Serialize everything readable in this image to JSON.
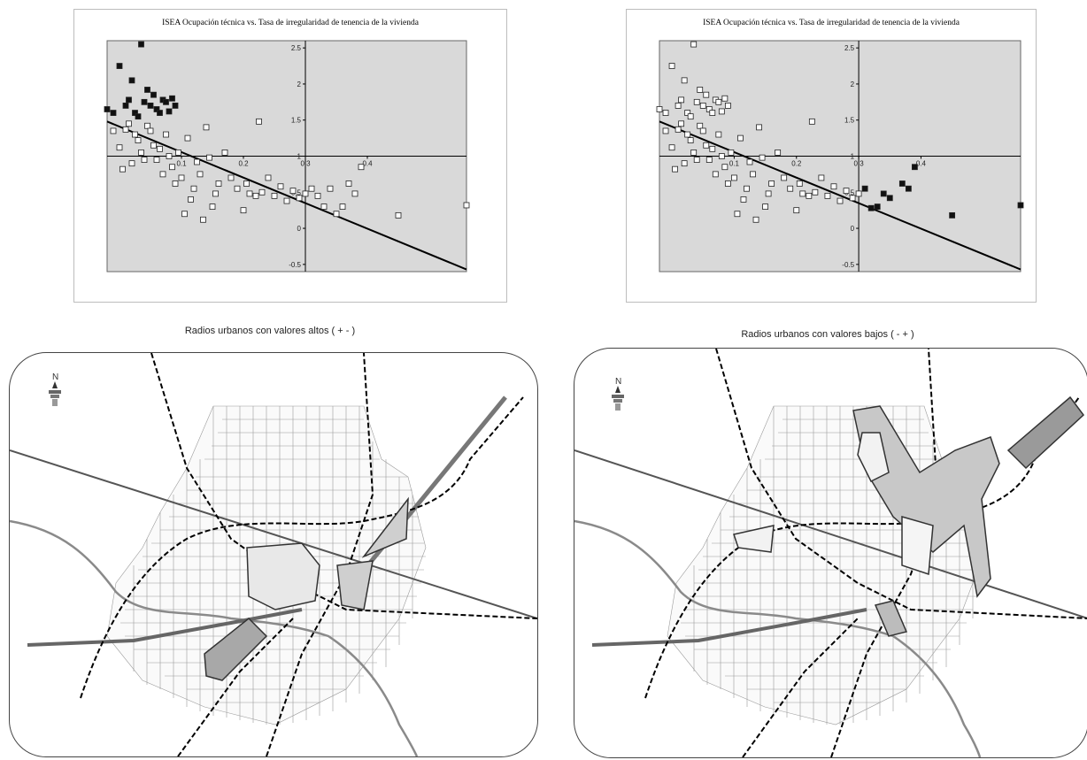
{
  "chart_data": [
    {
      "type": "scatter",
      "title": "ISEA Ocupación técnica vs. Tasa de irregularidad de tenencia de la vivienda",
      "xticks": [
        "0.1",
        "0.2",
        "0.3",
        "0.4"
      ],
      "yticks": [
        "2.5",
        "2",
        "1.5",
        "1",
        "0.5",
        "0",
        "-0.5"
      ],
      "xlim": [
        -0.12,
        0.46
      ],
      "ylim": [
        -0.6,
        2.6
      ],
      "x_axis_at_y": 1,
      "y_axis_at_x": 0.2,
      "regression_line": {
        "x": [
          -0.12,
          0.46
        ],
        "y": [
          1.48,
          -0.57
        ]
      },
      "series": [
        {
          "name": "",
          "filled": true,
          "points": [
            [
              -0.12,
              1.65
            ],
            [
              -0.11,
              1.6
            ],
            [
              -0.1,
              2.25
            ],
            [
              -0.09,
              1.7
            ],
            [
              -0.085,
              1.78
            ],
            [
              -0.08,
              2.05
            ],
            [
              -0.075,
              1.6
            ],
            [
              -0.07,
              1.55
            ],
            [
              -0.065,
              2.55
            ],
            [
              -0.06,
              1.75
            ],
            [
              -0.055,
              1.92
            ],
            [
              -0.05,
              1.7
            ],
            [
              -0.045,
              1.85
            ],
            [
              -0.04,
              1.65
            ],
            [
              -0.035,
              1.6
            ],
            [
              -0.03,
              1.78
            ],
            [
              -0.025,
              1.75
            ],
            [
              -0.02,
              1.62
            ],
            [
              -0.015,
              1.8
            ],
            [
              -0.01,
              1.7
            ]
          ]
        },
        {
          "name": "",
          "filled": false,
          "points": [
            [
              -0.11,
              1.35
            ],
            [
              -0.1,
              1.12
            ],
            [
              -0.095,
              0.82
            ],
            [
              -0.09,
              1.37
            ],
            [
              -0.085,
              1.45
            ],
            [
              -0.08,
              0.9
            ],
            [
              -0.075,
              1.3
            ],
            [
              -0.07,
              1.22
            ],
            [
              -0.065,
              1.05
            ],
            [
              -0.06,
              0.95
            ],
            [
              -0.055,
              1.42
            ],
            [
              -0.05,
              1.35
            ],
            [
              -0.045,
              1.15
            ],
            [
              -0.04,
              0.95
            ],
            [
              -0.035,
              1.1
            ],
            [
              -0.03,
              0.75
            ],
            [
              -0.025,
              1.3
            ],
            [
              -0.02,
              1.0
            ],
            [
              -0.015,
              0.85
            ],
            [
              -0.01,
              0.62
            ],
            [
              -0.005,
              1.05
            ],
            [
              0.0,
              0.7
            ],
            [
              0.005,
              0.2
            ],
            [
              0.01,
              1.25
            ],
            [
              0.015,
              0.4
            ],
            [
              0.02,
              0.55
            ],
            [
              0.025,
              0.92
            ],
            [
              0.03,
              0.75
            ],
            [
              0.035,
              0.12
            ],
            [
              0.04,
              1.4
            ],
            [
              0.045,
              0.98
            ],
            [
              0.05,
              0.3
            ],
            [
              0.055,
              0.48
            ],
            [
              0.06,
              0.62
            ],
            [
              0.07,
              1.05
            ],
            [
              0.08,
              0.7
            ],
            [
              0.09,
              0.55
            ],
            [
              0.1,
              0.25
            ],
            [
              0.105,
              0.62
            ],
            [
              0.11,
              0.48
            ],
            [
              0.12,
              0.45
            ],
            [
              0.125,
              1.48
            ],
            [
              0.13,
              0.5
            ],
            [
              0.14,
              0.7
            ],
            [
              0.15,
              0.45
            ],
            [
              0.16,
              0.58
            ],
            [
              0.17,
              0.38
            ],
            [
              0.18,
              0.52
            ],
            [
              0.19,
              0.42
            ],
            [
              0.2,
              0.48
            ],
            [
              0.21,
              0.55
            ],
            [
              0.22,
              0.45
            ],
            [
              0.23,
              0.3
            ],
            [
              0.24,
              0.55
            ],
            [
              0.25,
              0.2
            ],
            [
              0.26,
              0.3
            ],
            [
              0.27,
              0.62
            ],
            [
              0.28,
              0.48
            ],
            [
              0.29,
              0.85
            ],
            [
              0.35,
              0.18
            ],
            [
              0.46,
              0.32
            ]
          ]
        }
      ]
    },
    {
      "type": "scatter",
      "title": "ISEA Ocupación técnica vs. Tasa de irregularidad de tenencia de la vivienda",
      "xticks": [
        "0.1",
        "0.2",
        "0.3",
        "0.4"
      ],
      "yticks": [
        "2.5",
        "2",
        "1.5",
        "1",
        "0.5",
        "0",
        "-0.5"
      ],
      "xlim": [
        -0.12,
        0.46
      ],
      "ylim": [
        -0.6,
        2.6
      ],
      "x_axis_at_y": 1,
      "y_axis_at_x": 0.2,
      "regression_line": {
        "x": [
          -0.12,
          0.46
        ],
        "y": [
          1.48,
          -0.57
        ]
      },
      "series": [
        {
          "name": "",
          "filled": false,
          "points": [
            [
              -0.12,
              1.65
            ],
            [
              -0.11,
              1.6
            ],
            [
              -0.1,
              2.25
            ],
            [
              -0.09,
              1.7
            ],
            [
              -0.085,
              1.78
            ],
            [
              -0.08,
              2.05
            ],
            [
              -0.075,
              1.6
            ],
            [
              -0.07,
              1.55
            ],
            [
              -0.065,
              2.55
            ],
            [
              -0.06,
              1.75
            ],
            [
              -0.055,
              1.92
            ],
            [
              -0.05,
              1.7
            ],
            [
              -0.045,
              1.85
            ],
            [
              -0.04,
              1.65
            ],
            [
              -0.035,
              1.6
            ],
            [
              -0.03,
              1.78
            ],
            [
              -0.025,
              1.75
            ],
            [
              -0.02,
              1.62
            ],
            [
              -0.015,
              1.8
            ],
            [
              -0.01,
              1.7
            ],
            [
              -0.11,
              1.35
            ],
            [
              -0.1,
              1.12
            ],
            [
              -0.095,
              0.82
            ],
            [
              -0.09,
              1.37
            ],
            [
              -0.085,
              1.45
            ],
            [
              -0.08,
              0.9
            ],
            [
              -0.075,
              1.3
            ],
            [
              -0.07,
              1.22
            ],
            [
              -0.065,
              1.05
            ],
            [
              -0.06,
              0.95
            ],
            [
              -0.055,
              1.42
            ],
            [
              -0.05,
              1.35
            ],
            [
              -0.045,
              1.15
            ],
            [
              -0.04,
              0.95
            ],
            [
              -0.035,
              1.1
            ],
            [
              -0.03,
              0.75
            ],
            [
              -0.025,
              1.3
            ],
            [
              -0.02,
              1.0
            ],
            [
              -0.015,
              0.85
            ],
            [
              -0.01,
              0.62
            ],
            [
              -0.005,
              1.05
            ],
            [
              0.0,
              0.7
            ],
            [
              0.005,
              0.2
            ],
            [
              0.01,
              1.25
            ],
            [
              0.015,
              0.4
            ],
            [
              0.02,
              0.55
            ],
            [
              0.025,
              0.92
            ],
            [
              0.03,
              0.75
            ],
            [
              0.035,
              0.12
            ],
            [
              0.04,
              1.4
            ],
            [
              0.045,
              0.98
            ],
            [
              0.05,
              0.3
            ],
            [
              0.055,
              0.48
            ],
            [
              0.06,
              0.62
            ],
            [
              0.07,
              1.05
            ],
            [
              0.08,
              0.7
            ],
            [
              0.09,
              0.55
            ],
            [
              0.1,
              0.25
            ],
            [
              0.105,
              0.62
            ],
            [
              0.11,
              0.48
            ],
            [
              0.12,
              0.45
            ],
            [
              0.125,
              1.48
            ],
            [
              0.13,
              0.5
            ],
            [
              0.14,
              0.7
            ],
            [
              0.15,
              0.45
            ],
            [
              0.16,
              0.58
            ],
            [
              0.17,
              0.38
            ],
            [
              0.18,
              0.52
            ],
            [
              0.19,
              0.42
            ],
            [
              0.2,
              0.48
            ]
          ]
        },
        {
          "name": "",
          "filled": true,
          "points": [
            [
              0.21,
              0.55
            ],
            [
              0.22,
              0.28
            ],
            [
              0.23,
              0.3
            ],
            [
              0.24,
              0.48
            ],
            [
              0.25,
              0.42
            ],
            [
              0.27,
              0.62
            ],
            [
              0.28,
              0.55
            ],
            [
              0.29,
              0.85
            ],
            [
              0.35,
              0.18
            ],
            [
              0.46,
              0.32
            ]
          ]
        }
      ]
    }
  ],
  "maps": [
    {
      "title": "Radios urbanos con valores altos ( + - )",
      "north_label": "N"
    },
    {
      "title": "Radios urbanos con valores bajos ( - + )",
      "north_label": "N"
    }
  ]
}
